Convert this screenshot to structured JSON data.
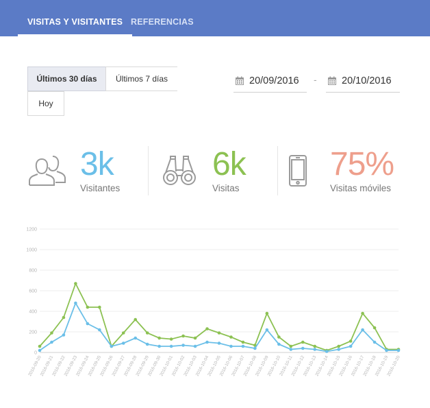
{
  "tabs": [
    {
      "label": "VISITAS Y VISITANTES",
      "active": true
    },
    {
      "label": "REFERENCIAS",
      "active": false
    }
  ],
  "range": {
    "options": [
      "Últimos 30 días",
      "Últimos 7 días",
      "Hoy"
    ],
    "selected": "Últimos 30 días"
  },
  "dates": {
    "from": "20/09/2016",
    "separator": "-",
    "to": "20/10/2016"
  },
  "stats": [
    {
      "value": "3k",
      "label": "Visitantes",
      "color": "#6bbfe8",
      "icon": "users-icon"
    },
    {
      "value": "6k",
      "label": "Visitas",
      "color": "#8cc152",
      "icon": "binoculars-icon"
    },
    {
      "value": "75%",
      "label": "Visitas móviles",
      "color": "#ee9f8c",
      "icon": "mobile-phone-icon"
    }
  ],
  "colors": {
    "header": "#5b7bc6",
    "visitantes": "#6bbfe8",
    "visitas": "#8cc152",
    "moviles": "#ee9f8c"
  },
  "chart_data": {
    "type": "line",
    "title": "",
    "xlabel": "",
    "ylabel": "",
    "ylim": [
      0,
      1200
    ],
    "yticks": [
      0,
      200,
      400,
      600,
      800,
      1000,
      1200
    ],
    "grid": true,
    "categories": [
      "2016-09-20",
      "2016-09-21",
      "2016-09-22",
      "2016-09-23",
      "2016-09-24",
      "2016-09-25",
      "2016-09-26",
      "2016-09-27",
      "2016-09-28",
      "2016-09-29",
      "2016-09-30",
      "2016-10-01",
      "2016-10-02",
      "2016-10-03",
      "2016-10-04",
      "2016-10-05",
      "2016-10-06",
      "2016-10-07",
      "2016-10-08",
      "2016-10-09",
      "2016-10-10",
      "2016-10-11",
      "2016-10-12",
      "2016-10-13",
      "2016-10-14",
      "2016-10-15",
      "2016-10-16",
      "2016-10-17",
      "2016-10-18",
      "2016-10-19",
      "2016-10-20"
    ],
    "series": [
      {
        "color": "#8cc152",
        "values": [
          60,
          190,
          340,
          670,
          440,
          440,
          60,
          190,
          320,
          190,
          140,
          130,
          160,
          140,
          230,
          190,
          150,
          100,
          70,
          380,
          150,
          60,
          100,
          60,
          20,
          60,
          110,
          380,
          240,
          30,
          30
        ]
      },
      {
        "color": "#6bbfe8",
        "values": [
          20,
          100,
          170,
          480,
          280,
          220,
          60,
          90,
          140,
          80,
          60,
          60,
          70,
          60,
          100,
          90,
          60,
          60,
          40,
          220,
          80,
          30,
          40,
          30,
          10,
          30,
          60,
          220,
          100,
          20,
          20
        ]
      }
    ]
  }
}
